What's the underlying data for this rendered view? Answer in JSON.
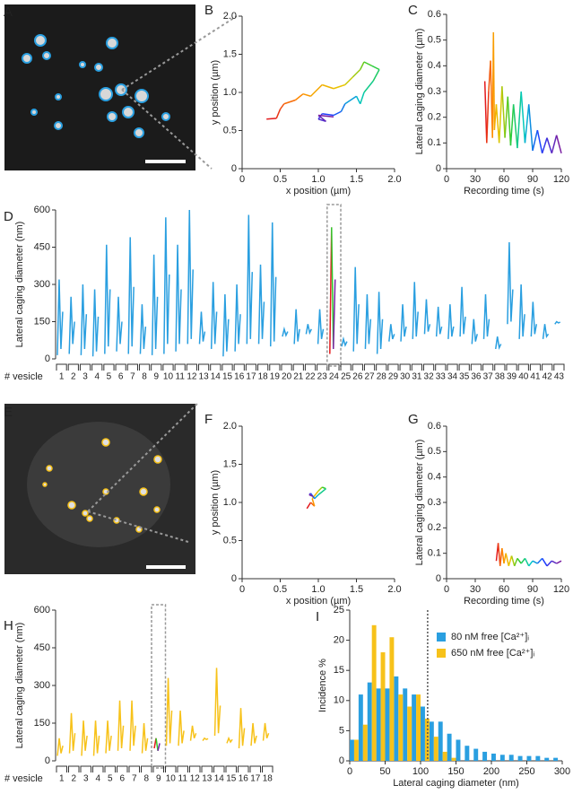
{
  "chart_data": [
    {
      "type": "image",
      "panel": "A"
    },
    {
      "type": "trajectory",
      "panel": "B",
      "xlabel": "x position (µm)",
      "ylabel": "y position (µm)",
      "x": [
        0.32,
        0.45,
        0.5,
        0.55,
        0.7,
        0.8,
        0.9,
        1.05,
        1.2,
        1.35,
        1.45,
        1.55,
        1.6,
        1.7,
        1.8,
        1.72,
        1.6,
        1.55,
        1.5,
        1.35,
        1.3,
        1.2,
        1.05,
        1.0,
        1.1,
        1.0,
        1.2
      ],
      "values": [
        0.65,
        0.66,
        0.78,
        0.85,
        0.9,
        0.98,
        0.95,
        1.1,
        1.05,
        1.1,
        1.2,
        1.3,
        1.4,
        1.35,
        1.3,
        1.15,
        1.0,
        0.85,
        0.95,
        0.85,
        0.75,
        0.7,
        0.72,
        0.65,
        0.62,
        0.7,
        0.68
      ],
      "xlim": [
        0,
        2
      ],
      "ylim": [
        0,
        2
      ],
      "xticks": [
        0,
        0.5,
        {
          "value": 1,
          "label": "1.0"
        },
        1.5,
        {
          "value": 2,
          "label": "2.0"
        }
      ],
      "yticks": [
        0,
        0.5,
        {
          "value": 1,
          "label": "1.0"
        },
        1.5,
        {
          "value": 2,
          "label": "2.0"
        }
      ],
      "gradient": [
        "#e31a1c",
        "#ff8c00",
        "#e8c800",
        "#2ecc2e",
        "#00c8c8",
        "#1f3fff",
        "#7a1fa2"
      ]
    },
    {
      "type": "line",
      "panel": "C",
      "xlabel": "Recording time (s)",
      "ylabel": "Lateral caging diameter (µm)",
      "x": [
        40,
        42,
        44,
        46,
        48,
        49,
        50,
        52,
        55,
        58,
        61,
        64,
        67,
        70,
        74,
        78,
        82,
        86,
        90,
        95,
        100,
        105,
        110,
        115,
        120
      ],
      "values": [
        0.34,
        0.1,
        0.3,
        0.42,
        0.12,
        0.53,
        0.15,
        0.25,
        0.1,
        0.32,
        0.12,
        0.28,
        0.09,
        0.25,
        0.08,
        0.3,
        0.1,
        0.25,
        0.07,
        0.15,
        0.06,
        0.12,
        0.06,
        0.13,
        0.06
      ],
      "xlim": [
        0,
        120
      ],
      "ylim": [
        0,
        0.6
      ],
      "xticks": [
        0,
        30,
        60,
        90,
        120
      ],
      "yticks": [
        0,
        0.1,
        0.2,
        0.3,
        0.4,
        0.5,
        0.6
      ],
      "gradient": [
        "#e31a1c",
        "#ff8c00",
        "#e8c800",
        "#2ecc2e",
        "#00c8c8",
        "#1f3fff",
        "#7a1fa2"
      ]
    },
    {
      "type": "vesicle_traces",
      "panel": "D",
      "ylabel": "Lateral caging diameter (nm)",
      "category_label": "# vesicle",
      "categories": [
        "1",
        "2",
        "3",
        "4",
        "5",
        "6",
        "7",
        "8",
        "9",
        "10",
        "11",
        "12",
        "13",
        "14",
        "15",
        "16",
        "17",
        "18",
        "19",
        "20",
        "21",
        "22",
        "23",
        "24",
        "25",
        "26",
        "27",
        "28",
        "29",
        "30",
        "31",
        "32",
        "33",
        "34",
        "35",
        "36",
        "37",
        "38",
        "39",
        "40",
        "41",
        "42",
        "43"
      ],
      "values": [
        [
          15,
          320,
          40,
          190
        ],
        [
          20,
          250,
          60,
          150
        ],
        [
          15,
          300,
          40,
          180
        ],
        [
          10,
          280,
          30,
          170
        ],
        [
          20,
          460,
          50,
          280
        ],
        [
          30,
          250,
          60,
          150
        ],
        [
          20,
          490,
          50,
          290
        ],
        [
          20,
          220,
          40,
          130
        ],
        [
          15,
          420,
          40,
          250
        ],
        [
          20,
          570,
          60,
          340
        ],
        [
          30,
          460,
          60,
          280
        ],
        [
          60,
          600,
          80,
          360
        ],
        [
          60,
          190,
          70,
          110
        ],
        [
          40,
          310,
          60,
          190
        ],
        [
          10,
          260,
          30,
          160
        ],
        [
          30,
          300,
          60,
          180
        ],
        [
          60,
          580,
          80,
          350
        ],
        [
          60,
          380,
          80,
          230
        ],
        [
          50,
          550,
          70,
          330
        ],
        [
          90,
          120,
          95,
          110
        ],
        [
          60,
          200,
          70,
          120
        ],
        [
          100,
          140,
          105,
          120
        ],
        [
          60,
          200,
          80,
          120
        ],
        [
          20,
          530,
          40,
          320
        ],
        [
          50,
          80,
          55,
          70
        ],
        [
          30,
          370,
          60,
          220
        ],
        [
          40,
          260,
          60,
          160
        ],
        [
          20,
          270,
          40,
          160
        ],
        [
          70,
          140,
          80,
          100
        ],
        [
          70,
          220,
          90,
          130
        ],
        [
          80,
          310,
          90,
          190
        ],
        [
          100,
          240,
          110,
          140
        ],
        [
          90,
          210,
          100,
          130
        ],
        [
          80,
          220,
          90,
          130
        ],
        [
          90,
          290,
          100,
          170
        ],
        [
          60,
          160,
          70,
          100
        ],
        [
          80,
          260,
          90,
          160
        ],
        [
          40,
          90,
          45,
          60
        ],
        [
          140,
          470,
          150,
          280
        ],
        [
          80,
          300,
          90,
          180
        ],
        [
          90,
          230,
          100,
          140
        ],
        [
          80,
          140,
          90,
          100
        ],
        [
          140,
          150,
          145,
          148
        ]
      ],
      "color": "#2a9fe0",
      "highlight": "24",
      "ylim": [
        0,
        600
      ],
      "yticks": [
        0,
        150,
        300,
        450,
        600
      ],
      "gradient": [
        "#e31a1c",
        "#ff8c00",
        "#e8c800",
        "#2ecc2e",
        "#00c8c8",
        "#1f3fff",
        "#7a1fa2"
      ]
    },
    {
      "type": "image",
      "panel": "E"
    },
    {
      "type": "trajectory",
      "panel": "F",
      "xlabel": "x position (µm)",
      "ylabel": "y position (µm)",
      "x": [
        0.85,
        0.9,
        0.95,
        0.92,
        1.0,
        1.05,
        1.1,
        1.0,
        0.95,
        0.9,
        0.88,
        0.93
      ],
      "values": [
        0.92,
        1.0,
        0.95,
        1.05,
        1.15,
        1.2,
        1.18,
        1.1,
        1.05,
        1.12,
        1.1,
        1.08
      ],
      "xlim": [
        0,
        2
      ],
      "ylim": [
        0,
        2
      ],
      "xticks": [
        0,
        0.5,
        {
          "value": 1,
          "label": "1.0"
        },
        1.5,
        {
          "value": 2,
          "label": "2.0"
        }
      ],
      "yticks": [
        0,
        0.5,
        {
          "value": 1,
          "label": "1.0"
        },
        1.5,
        {
          "value": 2,
          "label": "2.0"
        }
      ],
      "gradient": [
        "#e31a1c",
        "#ff8c00",
        "#e8c800",
        "#2ecc2e",
        "#00c8c8",
        "#1f3fff",
        "#7a1fa2"
      ]
    },
    {
      "type": "line",
      "panel": "G",
      "xlabel": "Recording time (s)",
      "ylabel": "Lateral caging diameter (µm)",
      "x": [
        52,
        54,
        56,
        58,
        60,
        62,
        65,
        68,
        71,
        74,
        78,
        82,
        86,
        90,
        95,
        100,
        105,
        110,
        115,
        120
      ],
      "values": [
        0.07,
        0.14,
        0.05,
        0.12,
        0.06,
        0.1,
        0.05,
        0.09,
        0.05,
        0.08,
        0.06,
        0.08,
        0.05,
        0.07,
        0.06,
        0.08,
        0.05,
        0.07,
        0.06,
        0.07
      ],
      "xlim": [
        0,
        120
      ],
      "ylim": [
        0,
        0.6
      ],
      "xticks": [
        0,
        30,
        60,
        90,
        120
      ],
      "yticks": [
        0,
        0.1,
        0.2,
        0.3,
        0.4,
        0.5,
        0.6
      ],
      "gradient": [
        "#e31a1c",
        "#ff8c00",
        "#e8c800",
        "#2ecc2e",
        "#00c8c8",
        "#1f3fff",
        "#7a1fa2"
      ]
    },
    {
      "type": "vesicle_traces",
      "panel": "H",
      "ylabel": "Lateral caging diameter (nm)",
      "category_label": "# vesicle",
      "categories": [
        "1",
        "2",
        "3",
        "4",
        "5",
        "6",
        "7",
        "8",
        "9",
        "10",
        "11",
        "12",
        "13",
        "14",
        "15",
        "16",
        "17",
        "18"
      ],
      "values": [
        [
          20,
          90,
          30,
          60
        ],
        [
          30,
          190,
          40,
          110
        ],
        [
          20,
          160,
          40,
          100
        ],
        [
          20,
          160,
          30,
          100
        ],
        [
          30,
          160,
          40,
          100
        ],
        [
          40,
          240,
          50,
          140
        ],
        [
          40,
          240,
          60,
          140
        ],
        [
          30,
          150,
          40,
          90
        ],
        [
          50,
          90,
          40,
          70
        ],
        [
          60,
          330,
          70,
          200
        ],
        [
          60,
          200,
          70,
          120
        ],
        [
          80,
          140,
          90,
          110
        ],
        [
          80,
          90,
          85,
          88
        ],
        [
          100,
          370,
          110,
          220
        ],
        [
          70,
          90,
          75,
          85
        ],
        [
          50,
          210,
          60,
          130
        ],
        [
          60,
          150,
          70,
          100
        ],
        [
          80,
          150,
          90,
          110
        ]
      ],
      "color": "#f7c21a",
      "highlight": "9",
      "ylim": [
        0,
        600
      ],
      "yticks": [
        0,
        150,
        300,
        450,
        600
      ],
      "gradient": [
        "#e31a1c",
        "#ff8c00",
        "#e8c800",
        "#2ecc2e",
        "#00c8c8",
        "#1f3fff",
        "#7a1fa2"
      ]
    },
    {
      "type": "histogram",
      "panel": "I",
      "xlabel": "Lateral caging diameter (nm)",
      "ylabel": "Incidence %",
      "bins": [
        0,
        12.5,
        25,
        37.5,
        50,
        62.5,
        75,
        87.5,
        100,
        112.5,
        125,
        137.5,
        150,
        162.5,
        175,
        187.5,
        200,
        212.5,
        225,
        237.5,
        250,
        262.5,
        275,
        287.5,
        300
      ],
      "series": [
        {
          "name": "80 nM free [Ca²⁺]ᵢ",
          "color": "#2a9fe0",
          "values": [
            3.5,
            11,
            13,
            12,
            12,
            14,
            12,
            11,
            9,
            6.5,
            6.5,
            4.5,
            3.5,
            2.5,
            2,
            1.5,
            1.2,
            1,
            1,
            0.8,
            0.8,
            0.8,
            0.5,
            0.5
          ]
        },
        {
          "name": "650 nM free [Ca²⁺]ᵢ",
          "color": "#f7c21a",
          "values": [
            3.5,
            6,
            22.5,
            18,
            20.5,
            11,
            9,
            11,
            7,
            4,
            1.5,
            0.5,
            0,
            0,
            0,
            0,
            0,
            0,
            0,
            0,
            0,
            0,
            0,
            0
          ]
        }
      ],
      "xlim": [
        0,
        300
      ],
      "ylim": [
        0,
        25
      ],
      "xticks": [
        0,
        50,
        100,
        150,
        200,
        250,
        300
      ],
      "yticks": [
        0,
        5,
        10,
        15,
        20,
        25
      ],
      "vline": 110,
      "legend": "upper-right"
    }
  ]
}
